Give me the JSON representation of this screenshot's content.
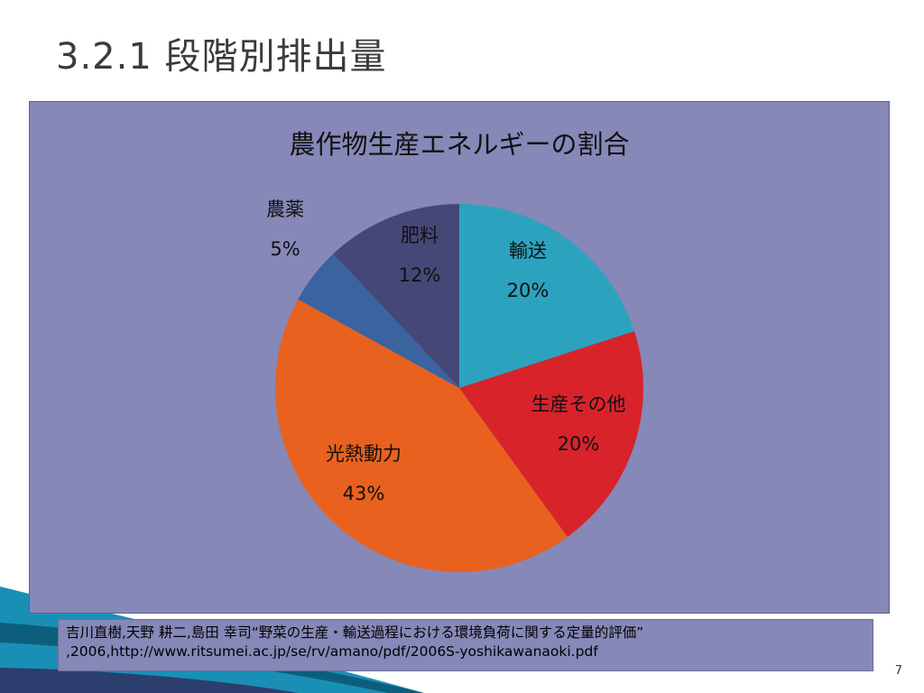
{
  "slide": {
    "title": "3.2.1 段階別排出量",
    "page_number": "7"
  },
  "citation": {
    "line1": "吉川直樹,天野 耕二,島田 幸司“野菜の生産・輸送過程における環境負荷に関する定量的評価”",
    "line2": ",2006,http://www.ritsumei.ac.jp/se/rv/amano/pdf/2006S-yoshikawanaoki.pdf"
  },
  "chart_data": {
    "type": "pie",
    "title": "農作物生産エネルギーの割合",
    "background": "#8688b8",
    "slices": [
      {
        "label": "輸送",
        "value": 20,
        "display": "20%",
        "color": "#2ba3bf"
      },
      {
        "label": "生産その他",
        "value": 20,
        "display": "20%",
        "color": "#d8232b"
      },
      {
        "label": "光熱動力",
        "value": 43,
        "display": "43%",
        "color": "#e8611e"
      },
      {
        "label": "農薬",
        "value": 5,
        "display": "5%",
        "color": "#3a63a0"
      },
      {
        "label": "肥料",
        "value": 12,
        "display": "12%",
        "color": "#454876"
      }
    ]
  }
}
